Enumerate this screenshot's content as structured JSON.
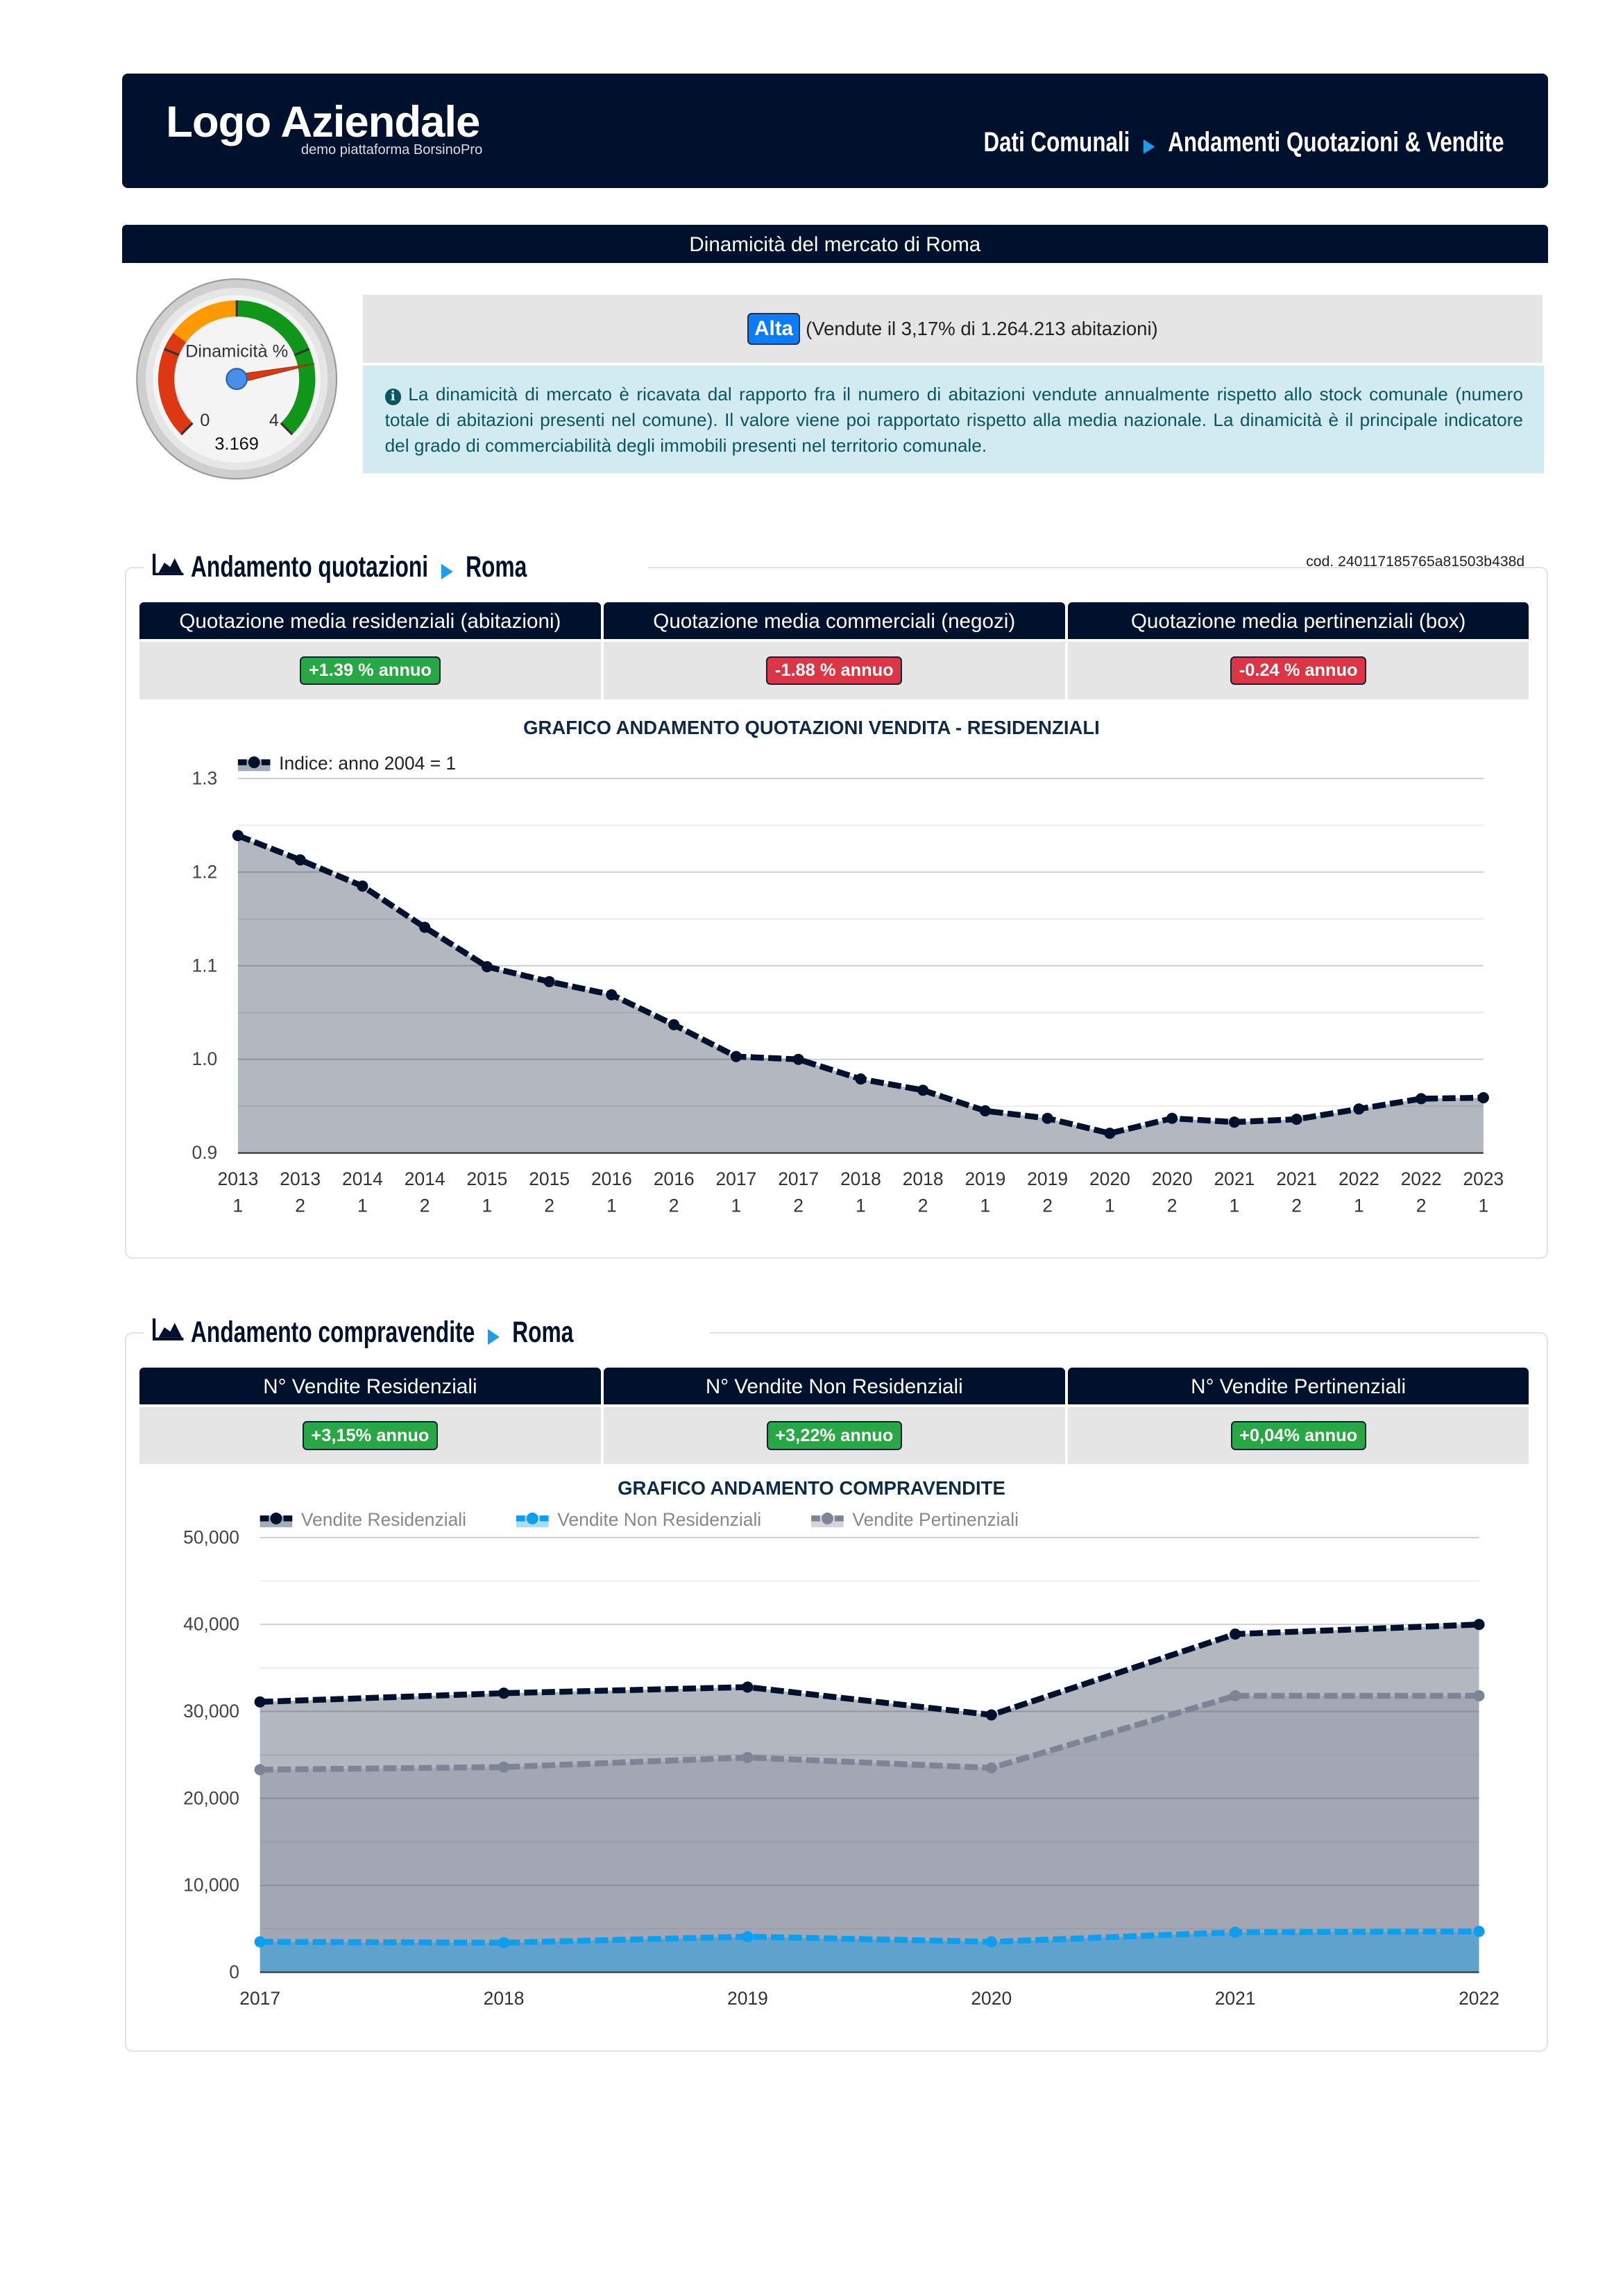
{
  "header": {
    "logo": "Logo Aziendale",
    "logo_sub": "demo piattaforma BorsinoPro",
    "breadcrumb": [
      "Dati Comunali",
      "Andamenti Quotazioni & Vendite"
    ]
  },
  "dinamicita": {
    "title": "Dinamicità del mercato di Roma",
    "gauge_label": "Dinamicità %",
    "gauge_min": "0",
    "gauge_max": "4",
    "gauge_value": "3.169",
    "gauge_value_num": 3.169,
    "level": "Alta",
    "summary": "(Vendute il 3,17% di 1.264.213 abitazioni)",
    "info": "La dinamicità di mercato è ricavata dal rapporto fra il numero di abitazioni vendute annualmente rispetto allo stock comunale (numero totale di abitazioni presenti nel comune). Il valore viene poi rapportato rispetto alla media nazionale. La dinamicità è il principale indicatore del grado di commerciabilità degli immobili presenti nel territorio comunale."
  },
  "quotazioni": {
    "title": "Andamento quotazioni",
    "city": "Roma",
    "cod": "cod. 240117185765a81503b438d",
    "columns": [
      {
        "label": "Quotazione media residenziali (abitazioni)",
        "value": "+1.39 % annuo",
        "color": "#28a745"
      },
      {
        "label": "Quotazione media commerciali (negozi)",
        "value": "-1.88 % annuo",
        "color": "#dc3545"
      },
      {
        "label": "Quotazione media pertinenziali (box)",
        "value": "-0.24 % annuo",
        "color": "#dc3545"
      }
    ]
  },
  "compravendite": {
    "title": "Andamento compravendite",
    "city": "Roma",
    "columns": [
      {
        "label": "N° Vendite Residenziali",
        "value": "+3,15% annuo"
      },
      {
        "label": "N° Vendite Non Residenziali",
        "value": "+3,22% annuo"
      },
      {
        "label": "N° Vendite Pertinenziali",
        "value": "+0,04% annuo"
      }
    ]
  },
  "chart_data": [
    {
      "type": "area",
      "title": "GRAFICO ANDAMENTO QUOTAZIONI VENDITA - RESIDENZIALI",
      "ylim": [
        0.9,
        1.3
      ],
      "yticks": [
        "1.3",
        "1.2",
        "1.1",
        "1.0",
        "0.9"
      ],
      "x": [
        [
          "2013",
          "1"
        ],
        [
          "2013",
          "2"
        ],
        [
          "2014",
          "1"
        ],
        [
          "2014",
          "2"
        ],
        [
          "2015",
          "1"
        ],
        [
          "2015",
          "2"
        ],
        [
          "2016",
          "1"
        ],
        [
          "2016",
          "2"
        ],
        [
          "2017",
          "1"
        ],
        [
          "2017",
          "2"
        ],
        [
          "2018",
          "1"
        ],
        [
          "2018",
          "2"
        ],
        [
          "2019",
          "1"
        ],
        [
          "2019",
          "2"
        ],
        [
          "2020",
          "1"
        ],
        [
          "2020",
          "2"
        ],
        [
          "2021",
          "1"
        ],
        [
          "2021",
          "2"
        ],
        [
          "2022",
          "1"
        ],
        [
          "2022",
          "2"
        ],
        [
          "2023",
          "1"
        ]
      ],
      "series": [
        {
          "name": "Indice: anno 2004 = 1",
          "color": "#00112e",
          "values": [
            1.239,
            1.213,
            1.185,
            1.141,
            1.099,
            1.083,
            1.069,
            1.037,
            1.003,
            1.0,
            0.979,
            0.967,
            0.945,
            0.937,
            0.921,
            0.937,
            0.933,
            0.936,
            0.947,
            0.958,
            0.959
          ]
        }
      ]
    },
    {
      "type": "area",
      "title": "GRAFICO ANDAMENTO COMPRAVENDITE",
      "ylim": [
        0,
        50000
      ],
      "yticks": [
        "50,000",
        "40,000",
        "30,000",
        "20,000",
        "10,000",
        "0"
      ],
      "x": [
        "2017",
        "2018",
        "2019",
        "2020",
        "2021",
        "2022"
      ],
      "series": [
        {
          "name": "Vendite Residenziali",
          "color": "#00112e",
          "values": [
            31100,
            32100,
            32800,
            29600,
            38900,
            40000
          ]
        },
        {
          "name": "Vendite Non Residenziali",
          "color": "#0d9ef0",
          "values": [
            3500,
            3400,
            4100,
            3500,
            4600,
            4700
          ]
        },
        {
          "name": "Vendite Pertinenziali",
          "color": "#7d8496",
          "values": [
            23300,
            23600,
            24700,
            23500,
            31800,
            31800
          ]
        }
      ]
    }
  ]
}
